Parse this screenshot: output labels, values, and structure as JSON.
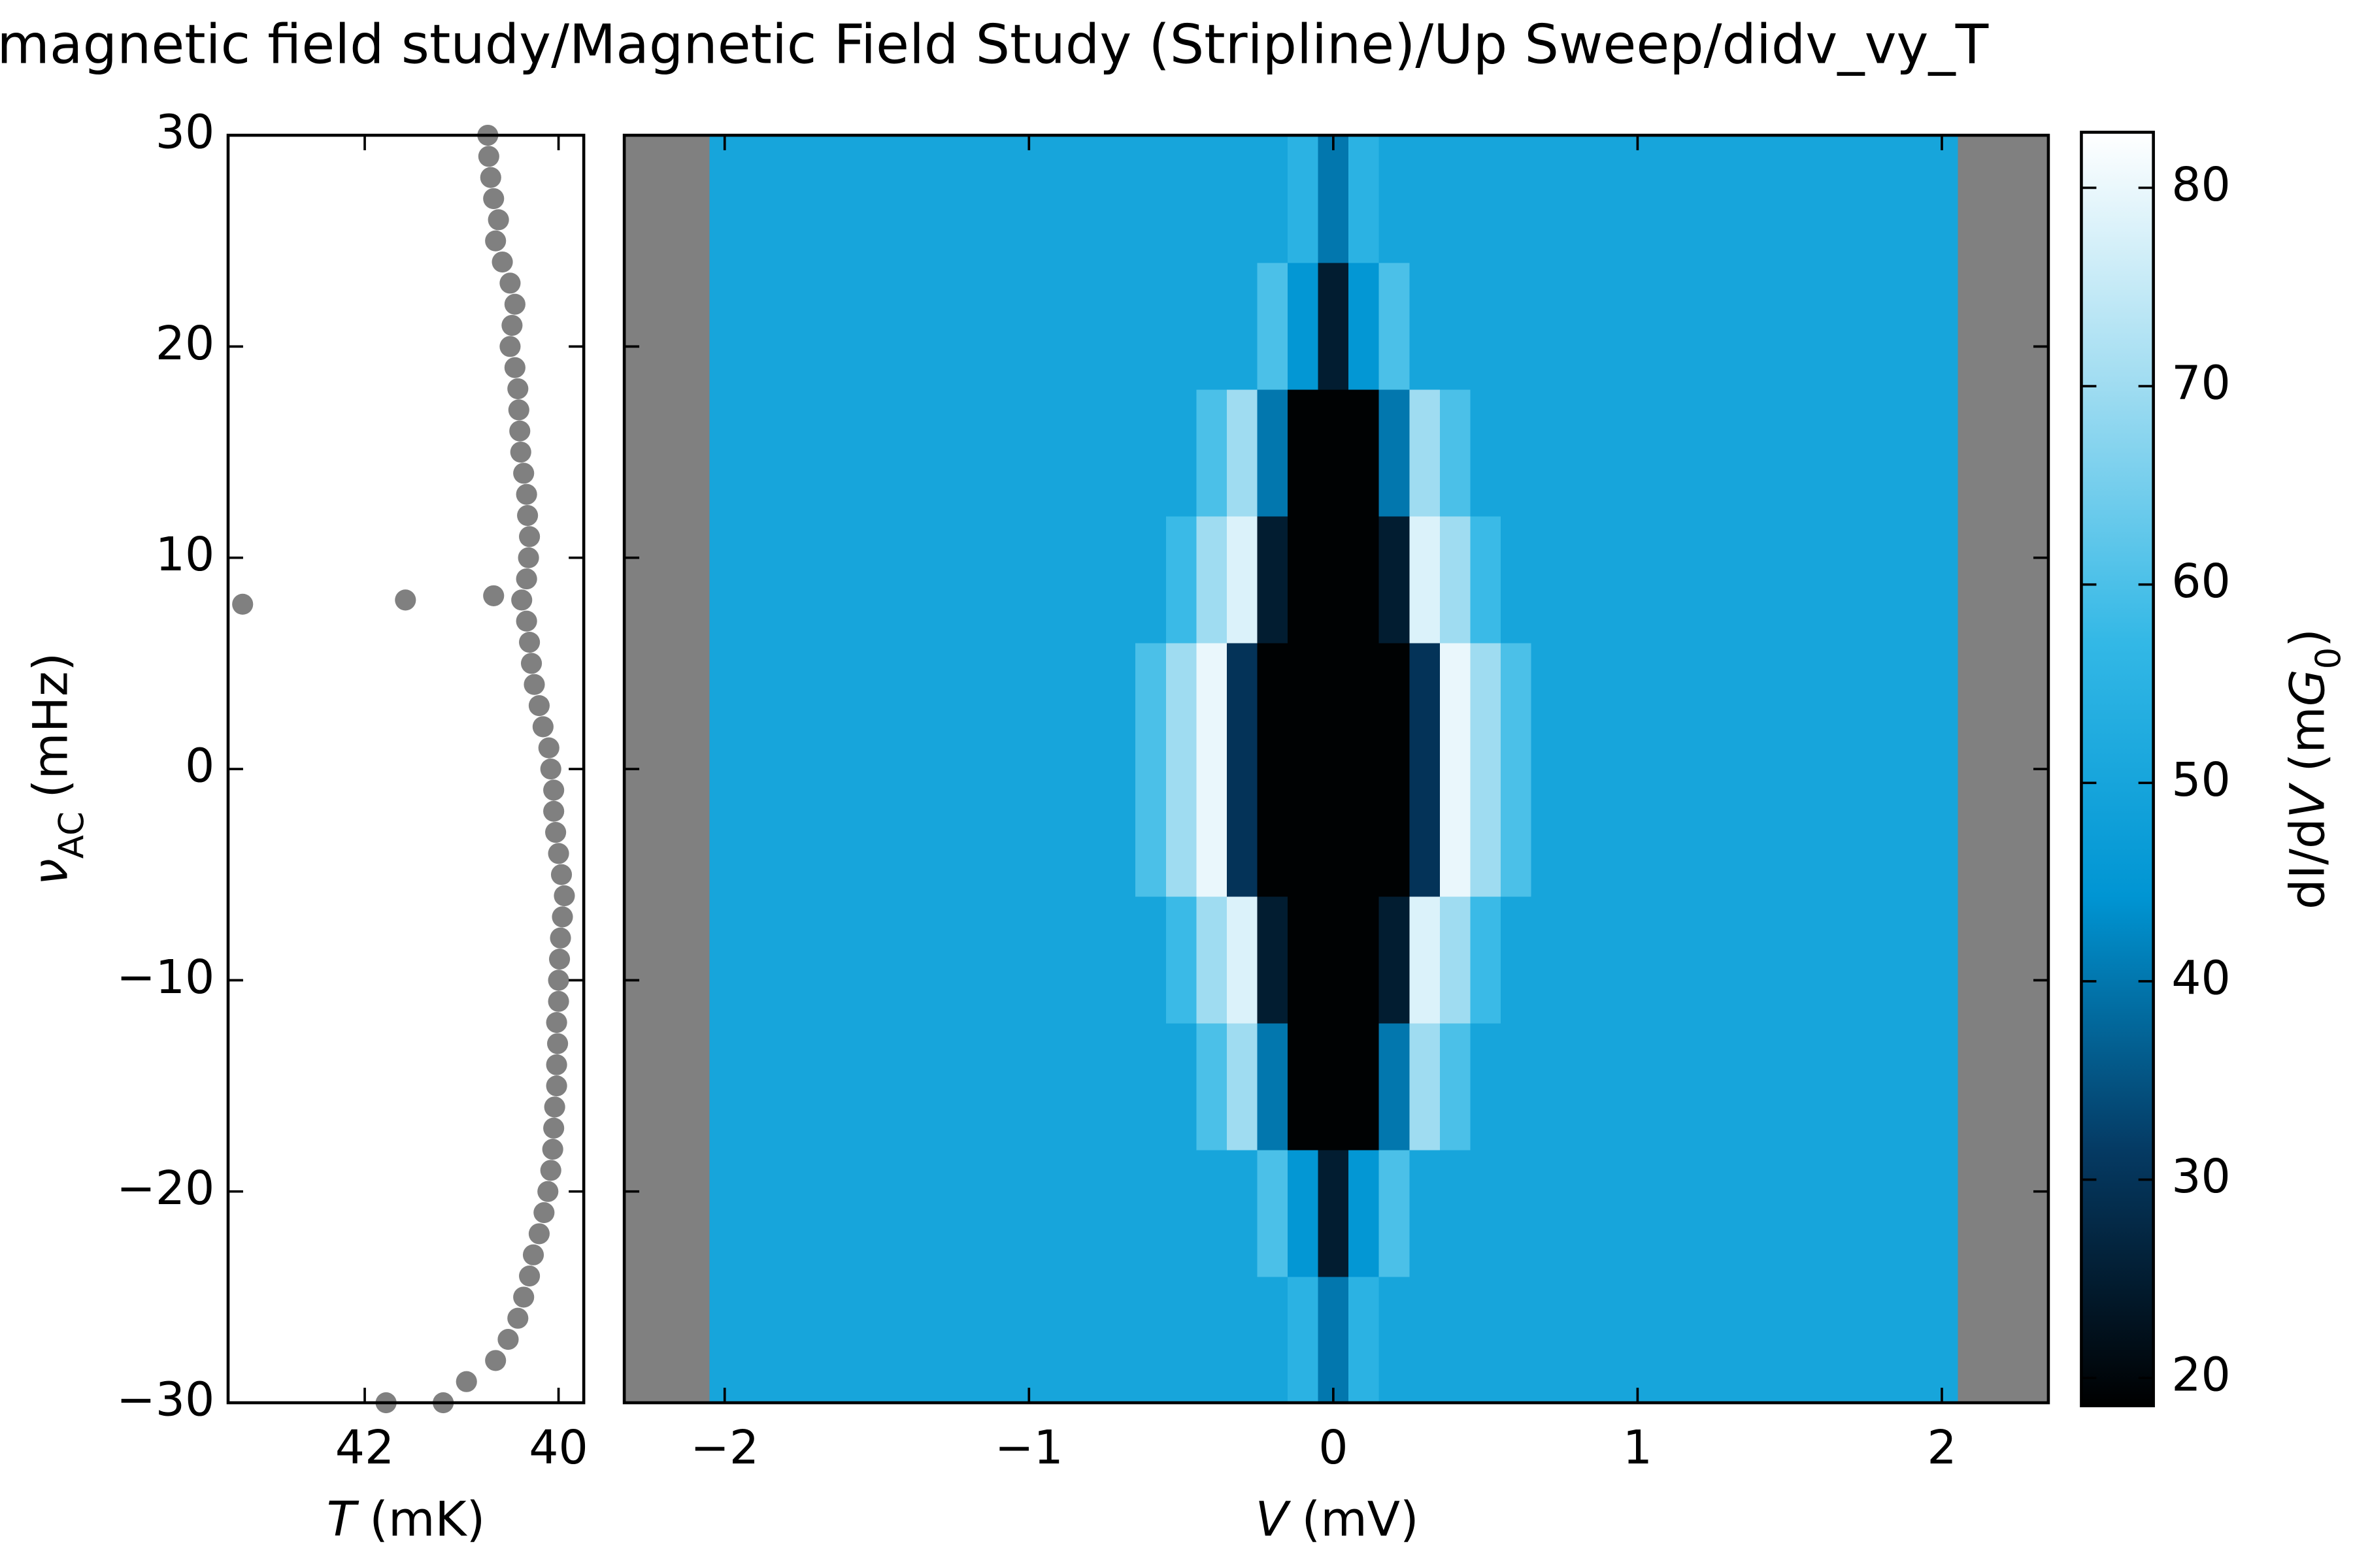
{
  "title": "magnetic field study/Magnetic Field Study (Stripline)/Up Sweep/didv_vy_T",
  "chart_data": [
    {
      "type": "scatter",
      "color": "#808080",
      "xlabel": [
        {
          "text": "T",
          "style": "italic"
        },
        {
          "text": "(mK)"
        }
      ],
      "ylabel": [
        {
          "text": "ν",
          "style": "italic"
        },
        {
          "text": "AC",
          "style": "sub"
        },
        {
          "text": "(mHz)"
        }
      ],
      "xlim": [
        43.41,
        39.74
      ],
      "xticks": [
        42,
        40
      ],
      "ylim": [
        -30,
        30
      ],
      "yticks": [
        {
          "value": -30,
          "label": "−30"
        },
        {
          "value": -20,
          "label": "−20"
        },
        {
          "value": -10,
          "label": "−10"
        },
        0,
        10,
        20,
        30
      ],
      "x": [
        41.19,
        40.95,
        40.65,
        40.52,
        40.42,
        40.36,
        40.3,
        40.26,
        40.2,
        40.15,
        40.11,
        40.08,
        40.06,
        40.05,
        40.04,
        40.02,
        40.02,
        40.01,
        40.02,
        40.0,
        40.0,
        39.99,
        39.98,
        39.96,
        39.94,
        39.97,
        40.0,
        40.03,
        40.05,
        40.05,
        40.08,
        40.1,
        40.16,
        40.2,
        40.25,
        40.28,
        40.3,
        40.33,
        40.38,
        40.33,
        40.31,
        40.3,
        40.32,
        40.33,
        40.36,
        40.39,
        40.4,
        40.41,
        40.42,
        40.45,
        40.5,
        40.48,
        40.45,
        40.5,
        40.58,
        40.65,
        40.62,
        40.67,
        40.7,
        40.72,
        40.73,
        43.26,
        41.58,
        40.67,
        41.78
      ],
      "y": [
        -30,
        -29,
        -28,
        -27,
        -26,
        -25,
        -24,
        -23,
        -22,
        -21,
        -20,
        -19,
        -18,
        -17,
        -16,
        -15,
        -14,
        -13,
        -12,
        -11,
        -10,
        -9,
        -8,
        -7,
        -6,
        -5,
        -4,
        -3,
        -2,
        -1,
        0,
        1,
        2,
        3,
        4,
        5,
        6,
        7,
        8,
        9,
        10,
        11,
        12,
        13,
        14,
        15,
        16,
        17,
        18,
        19,
        20,
        21,
        22,
        23,
        24,
        25,
        26,
        27,
        28,
        29,
        30,
        7.8,
        8.0,
        8.2,
        -30
      ]
    },
    {
      "type": "heatmap",
      "nan_color": "#808080",
      "colormap": [
        "#000000",
        "#053a63",
        "#0095d3",
        "#33b8e6",
        "#9fdcf1",
        "#ffffff"
      ],
      "xlabel": [
        {
          "text": "V",
          "style": "italic"
        },
        {
          "text": "(mV)"
        }
      ],
      "xlim": [
        -2.33,
        2.35
      ],
      "xticks": [
        {
          "value": -2,
          "label": "−2"
        },
        {
          "value": -1,
          "label": "−1"
        },
        0,
        1,
        2
      ],
      "ylim": [
        -30,
        30
      ],
      "yticks": [
        -30,
        -20,
        -10,
        0,
        10,
        20,
        30
      ],
      "zlim": [
        18.6,
        82.8
      ],
      "zticks": [
        20,
        30,
        40,
        50,
        60,
        70,
        80
      ],
      "zlabel": [
        {
          "text": "dI/d"
        },
        {
          "text": "V",
          "style": "italic"
        },
        {
          "text": "(m"
        },
        {
          "text": "G",
          "style": "italic"
        },
        {
          "text": "0",
          "style": "sub"
        },
        {
          "text": ")"
        }
      ],
      "x": [
        -2.0,
        -1.9,
        -1.8,
        -1.7,
        -1.6,
        -1.5,
        -1.4,
        -1.3,
        -1.2,
        -1.1,
        -1.0,
        -0.9,
        -0.8,
        -0.7,
        -0.6,
        -0.5,
        -0.4,
        -0.3,
        -0.2,
        -0.1,
        0.0,
        0.1,
        0.2,
        0.3,
        0.4,
        0.5,
        0.6,
        0.7,
        0.8,
        0.9,
        1.0,
        1.1,
        1.2,
        1.3,
        1.4,
        1.5,
        1.6,
        1.7,
        1.8,
        1.9,
        2.0
      ],
      "y": [
        -27,
        -21,
        -15,
        -9,
        -3,
        3,
        9,
        15,
        21,
        27
      ],
      "z": [
        [
          50,
          50,
          50,
          50,
          50,
          50,
          50,
          50,
          50,
          50,
          50,
          50,
          50,
          50,
          50,
          50,
          50,
          50,
          50,
          55,
          40,
          55,
          50,
          50,
          50,
          50,
          50,
          50,
          50,
          50,
          50,
          50,
          50,
          50,
          50,
          50,
          50,
          50,
          50,
          50,
          50
        ],
        [
          50,
          50,
          50,
          50,
          50,
          50,
          50,
          50,
          50,
          50,
          50,
          50,
          50,
          50,
          50,
          50,
          50,
          50,
          60,
          45,
          25,
          45,
          60,
          50,
          50,
          50,
          50,
          50,
          50,
          50,
          50,
          50,
          50,
          50,
          50,
          50,
          50,
          50,
          50,
          50,
          50
        ],
        [
          50,
          50,
          50,
          50,
          50,
          50,
          50,
          50,
          50,
          50,
          50,
          50,
          50,
          50,
          50,
          50,
          60,
          70,
          40,
          19,
          19,
          19,
          40,
          70,
          60,
          50,
          50,
          50,
          50,
          50,
          50,
          50,
          50,
          50,
          50,
          50,
          50,
          50,
          50,
          50,
          50
        ],
        [
          50,
          50,
          50,
          50,
          50,
          50,
          50,
          50,
          50,
          50,
          50,
          50,
          50,
          50,
          50,
          58,
          70,
          78,
          25,
          19,
          19,
          19,
          25,
          78,
          70,
          58,
          50,
          50,
          50,
          50,
          50,
          50,
          50,
          50,
          50,
          50,
          50,
          50,
          50,
          50,
          50
        ],
        [
          50,
          50,
          50,
          50,
          50,
          50,
          50,
          50,
          50,
          50,
          50,
          50,
          50,
          50,
          60,
          70,
          80,
          30,
          19,
          19,
          19,
          19,
          19,
          30,
          80,
          70,
          60,
          50,
          50,
          50,
          50,
          50,
          50,
          50,
          50,
          50,
          50,
          50,
          50,
          50,
          50
        ],
        [
          50,
          50,
          50,
          50,
          50,
          50,
          50,
          50,
          50,
          50,
          50,
          50,
          50,
          50,
          60,
          70,
          80,
          30,
          19,
          19,
          19,
          19,
          19,
          30,
          80,
          70,
          60,
          50,
          50,
          50,
          50,
          50,
          50,
          50,
          50,
          50,
          50,
          50,
          50,
          50,
          50
        ],
        [
          50,
          50,
          50,
          50,
          50,
          50,
          50,
          50,
          50,
          50,
          50,
          50,
          50,
          50,
          50,
          58,
          70,
          78,
          25,
          19,
          19,
          19,
          25,
          78,
          70,
          58,
          50,
          50,
          50,
          50,
          50,
          50,
          50,
          50,
          50,
          50,
          50,
          50,
          50,
          50,
          50
        ],
        [
          50,
          50,
          50,
          50,
          50,
          50,
          50,
          50,
          50,
          50,
          50,
          50,
          50,
          50,
          50,
          50,
          60,
          70,
          40,
          19,
          19,
          19,
          40,
          70,
          60,
          50,
          50,
          50,
          50,
          50,
          50,
          50,
          50,
          50,
          50,
          50,
          50,
          50,
          50,
          50,
          50
        ],
        [
          50,
          50,
          50,
          50,
          50,
          50,
          50,
          50,
          50,
          50,
          50,
          50,
          50,
          50,
          50,
          50,
          50,
          50,
          60,
          45,
          25,
          45,
          60,
          50,
          50,
          50,
          50,
          50,
          50,
          50,
          50,
          50,
          50,
          50,
          50,
          50,
          50,
          50,
          50,
          50,
          50
        ],
        [
          50,
          50,
          50,
          50,
          50,
          50,
          50,
          50,
          50,
          50,
          50,
          50,
          50,
          50,
          50,
          50,
          50,
          50,
          50,
          55,
          40,
          55,
          50,
          50,
          50,
          50,
          50,
          50,
          50,
          50,
          50,
          50,
          50,
          50,
          50,
          50,
          50,
          50,
          50,
          50,
          50
        ]
      ]
    }
  ]
}
